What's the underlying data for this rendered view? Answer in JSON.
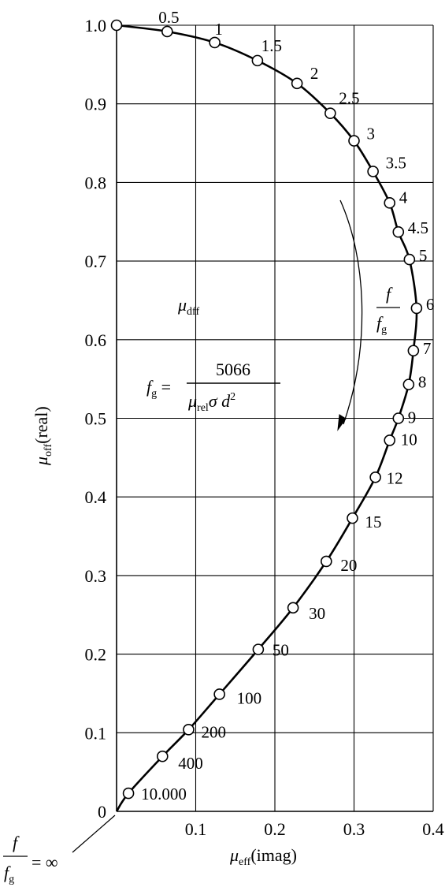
{
  "chart_data": {
    "type": "line",
    "xlabel": {
      "sym": "μ",
      "sub": "eff",
      "rest": "(imag)"
    },
    "ylabel": {
      "sym": "μ",
      "sub": "off",
      "rest": "(real)"
    },
    "xlim": [
      0,
      0.4
    ],
    "ylim": [
      0,
      1.0
    ],
    "xticks": [
      "0.1",
      "0.2",
      "0.3",
      "0.4"
    ],
    "yticks": [
      "0",
      "0.1",
      "0.2",
      "0.3",
      "0.4",
      "0.5",
      "0.6",
      "0.7",
      "0.8",
      "0.9",
      "1.0"
    ],
    "grid": true,
    "series": [
      {
        "x": [
          0.0,
          0.064,
          0.124,
          0.178,
          0.228,
          0.27,
          0.3,
          0.324,
          0.345,
          0.356,
          0.37,
          0.379,
          0.375,
          0.369,
          0.356,
          0.345,
          0.327,
          0.298,
          0.265,
          0.223,
          0.179,
          0.13,
          0.091,
          0.058,
          0.015
        ],
        "y": [
          1.0,
          0.992,
          0.978,
          0.955,
          0.926,
          0.888,
          0.853,
          0.814,
          0.774,
          0.737,
          0.702,
          0.64,
          0.586,
          0.543,
          0.5,
          0.472,
          0.425,
          0.373,
          0.318,
          0.259,
          0.206,
          0.149,
          0.104,
          0.07,
          0.023
        ],
        "labels": [
          "",
          "0.5",
          "1",
          "1.5",
          "2",
          "2.5",
          "3",
          "3.5",
          "4",
          "4.5",
          "5",
          "6",
          "7",
          "8",
          "9",
          "10",
          "12",
          "15",
          "20",
          "30",
          "50",
          "100",
          "200",
          "400",
          "10.000"
        ]
      }
    ],
    "annotations": {
      "curve_symbol": {
        "sym": "μ",
        "sub": "dff"
      },
      "formula": {
        "lhs": "f",
        "lhs_sub": "g",
        "numerator": "5066",
        "den_sym": "μ",
        "den_sub": "rel",
        "den_rest": "σ d",
        "den_sup": "2"
      },
      "arrow_label": {
        "num": "f",
        "den": "f",
        "den_sub": "g"
      },
      "origin_label": {
        "num": "f",
        "den": "f",
        "den_sub": "g",
        "value": "= ∞"
      }
    }
  },
  "colors": {
    "ink": "#000000",
    "background": "#ffffff"
  }
}
